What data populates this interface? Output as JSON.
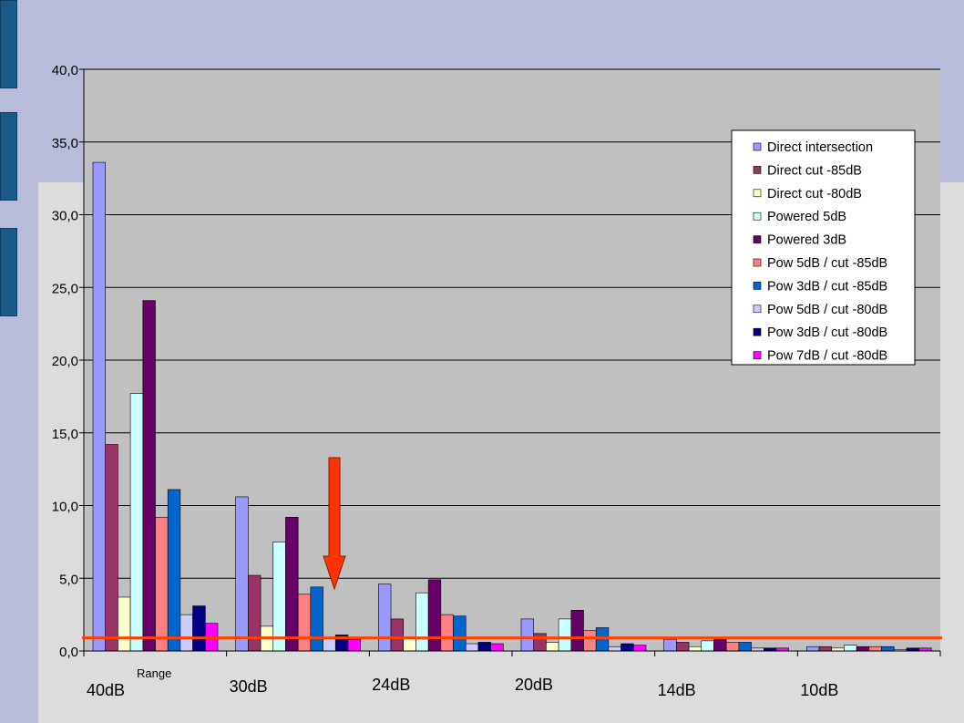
{
  "chart_data": {
    "type": "bar",
    "title": "",
    "xlabel": "",
    "ylabel": "",
    "ylim": [
      0,
      40
    ],
    "yticks": [
      "0,0",
      "5,0",
      "10,0",
      "15,0",
      "20,0",
      "25,0",
      "30,0",
      "35,0",
      "40,0"
    ],
    "grid": true,
    "legend_position": "top-right",
    "categories": [
      "40dB",
      "30dB",
      "24dB",
      "20dB",
      "14dB",
      "10dB"
    ],
    "annotations": {
      "range_label": "Range",
      "reference_line_value": 0.9,
      "arrow_category": "30dB"
    },
    "series": [
      {
        "name": "Direct intersection",
        "color": "#9999ff",
        "values": [
          33.6,
          10.6,
          4.6,
          2.2,
          0.8,
          0.3
        ]
      },
      {
        "name": "Direct cut -85dB",
        "color": "#993366",
        "values": [
          14.2,
          5.2,
          2.2,
          1.2,
          0.6,
          0.3
        ]
      },
      {
        "name": "Direct cut -80dB",
        "color": "#ffffcc",
        "values": [
          3.7,
          1.7,
          0.9,
          0.6,
          0.3,
          0.2
        ]
      },
      {
        "name": "Powered 5dB",
        "color": "#ccffff",
        "values": [
          17.7,
          7.5,
          4.0,
          2.2,
          0.7,
          0.4
        ]
      },
      {
        "name": "Powered 3dB",
        "color": "#660066",
        "values": [
          24.1,
          9.2,
          4.9,
          2.8,
          0.9,
          0.3
        ]
      },
      {
        "name": "Pow 5dB / cut -85dB",
        "color": "#ff8080",
        "values": [
          9.2,
          3.9,
          2.5,
          1.4,
          0.6,
          0.3
        ]
      },
      {
        "name": "Pow 3dB / cut -85dB",
        "color": "#0066cc",
        "values": [
          11.1,
          4.4,
          2.4,
          1.6,
          0.6,
          0.3
        ]
      },
      {
        "name": "Pow 5dB / cut -80dB",
        "color": "#ccccff",
        "values": [
          2.5,
          0.9,
          0.5,
          0.3,
          0.2,
          0.1
        ]
      },
      {
        "name": "Pow 3dB / cut -80dB",
        "color": "#000080",
        "values": [
          3.1,
          1.1,
          0.6,
          0.5,
          0.2,
          0.2
        ]
      },
      {
        "name": "Pow 7dB / cut -80dB",
        "color": "#ff00ff",
        "values": [
          1.9,
          0.8,
          0.5,
          0.4,
          0.2,
          0.2
        ]
      }
    ],
    "colors": {
      "plot_background": "#c0c0c0",
      "reference_line": "#ff4000",
      "arrow": "#ff3300"
    }
  }
}
